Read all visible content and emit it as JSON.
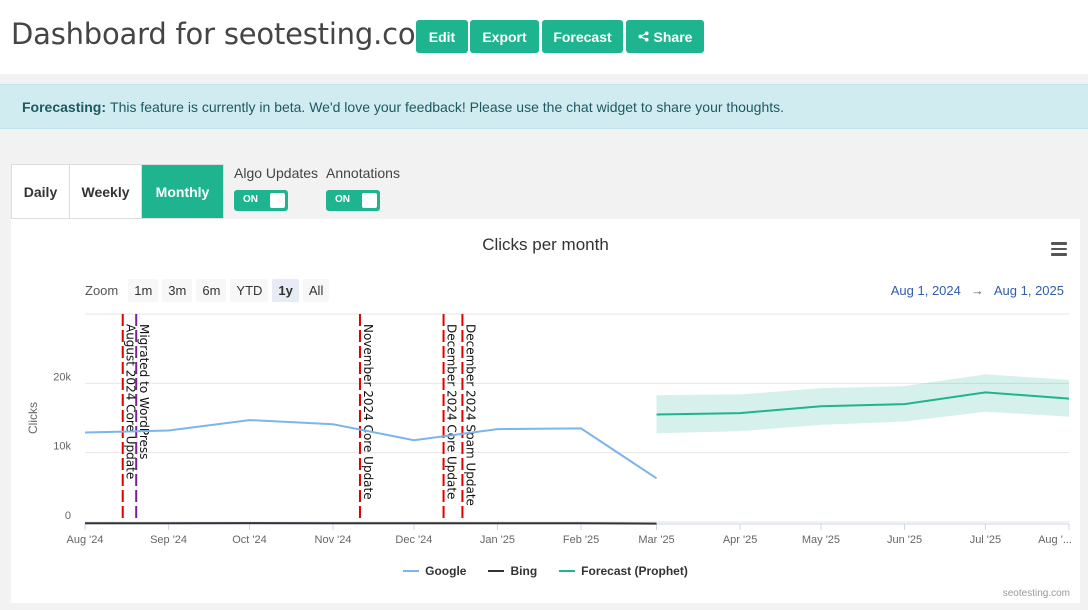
{
  "header": {
    "title": "Dashboard for seotesting.com",
    "buttons": {
      "edit": "Edit",
      "export": "Export",
      "forecast": "Forecast",
      "share": "Share"
    }
  },
  "alert": {
    "label": "Forecasting:",
    "message": "This feature is currently in beta. We'd love your feedback! Please use the chat widget to share your thoughts."
  },
  "tabs": [
    "Daily",
    "Weekly",
    "Monthly"
  ],
  "active_tab": "Monthly",
  "toggles": {
    "algo_updates": {
      "label": "Algo Updates",
      "state": "ON"
    },
    "annotations": {
      "label": "Annotations",
      "state": "ON"
    }
  },
  "zoom": {
    "label": "Zoom",
    "options": [
      "1m",
      "3m",
      "6m",
      "YTD",
      "1y",
      "All"
    ],
    "selected": "1y"
  },
  "range": {
    "from": "Aug 1, 2024",
    "sep": "→",
    "to": "Aug 1, 2025"
  },
  "credit": "seotesting.com",
  "colors": {
    "accent": "#1eb48f",
    "google": "#7cb5ec",
    "bing": "#333333",
    "forecast": "#1eb48f",
    "algo_line": "#e00000",
    "annotation_line": "#7a1fa2"
  },
  "chart_data": {
    "type": "line",
    "title": "Clicks per month",
    "ylabel": "Clicks",
    "ylim": [
      0,
      30000
    ],
    "x_ticks": [
      "Aug '24",
      "Sep '24",
      "Oct '24",
      "Nov '24",
      "Dec '24",
      "Jan '25",
      "Feb '25",
      "Mar '25",
      "Apr '25",
      "May '25",
      "Jun '25",
      "Jul '25",
      "Aug '..."
    ],
    "y_ticks": [
      {
        "value": 0,
        "label": "0"
      },
      {
        "value": 10000,
        "label": "10k"
      },
      {
        "value": 20000,
        "label": "20k"
      }
    ],
    "legend_position": "bottom",
    "series": [
      {
        "name": "Google",
        "x": [
          "2024-08-01",
          "2024-09-01",
          "2024-10-01",
          "2024-11-01",
          "2024-12-01",
          "2025-01-01",
          "2025-02-01",
          "2025-03-01"
        ],
        "values": [
          12900,
          13200,
          14700,
          14100,
          11800,
          13400,
          13500,
          6300
        ]
      },
      {
        "name": "Bing",
        "x": [
          "2024-08-01",
          "2024-09-01",
          "2024-10-01",
          "2024-11-01",
          "2024-12-01",
          "2025-01-01",
          "2025-02-01",
          "2025-03-01"
        ],
        "values": [
          100,
          100,
          120,
          110,
          100,
          110,
          100,
          60
        ]
      },
      {
        "name": "Forecast (Prophet)",
        "x": [
          "2025-03-01",
          "2025-04-01",
          "2025-05-01",
          "2025-06-01",
          "2025-07-01",
          "2025-08-01"
        ],
        "values": [
          15500,
          15700,
          16700,
          17000,
          18700,
          17800
        ],
        "lower": [
          12800,
          13100,
          14000,
          14500,
          15900,
          15200
        ],
        "upper": [
          18300,
          18400,
          19300,
          19600,
          21300,
          20500
        ]
      }
    ],
    "annotations": [
      {
        "date": "2024-08-15",
        "label": "August 2024 Core Update",
        "kind": "algo"
      },
      {
        "date": "2024-08-20",
        "label": "Migrated to WordPress",
        "kind": "annotation"
      },
      {
        "date": "2024-11-11",
        "label": "November 2024 Core Update",
        "kind": "algo"
      },
      {
        "date": "2024-12-12",
        "label": "December 2024 Core Update",
        "kind": "algo"
      },
      {
        "date": "2024-12-19",
        "label": "December 2024 Spam Update",
        "kind": "algo"
      }
    ]
  }
}
